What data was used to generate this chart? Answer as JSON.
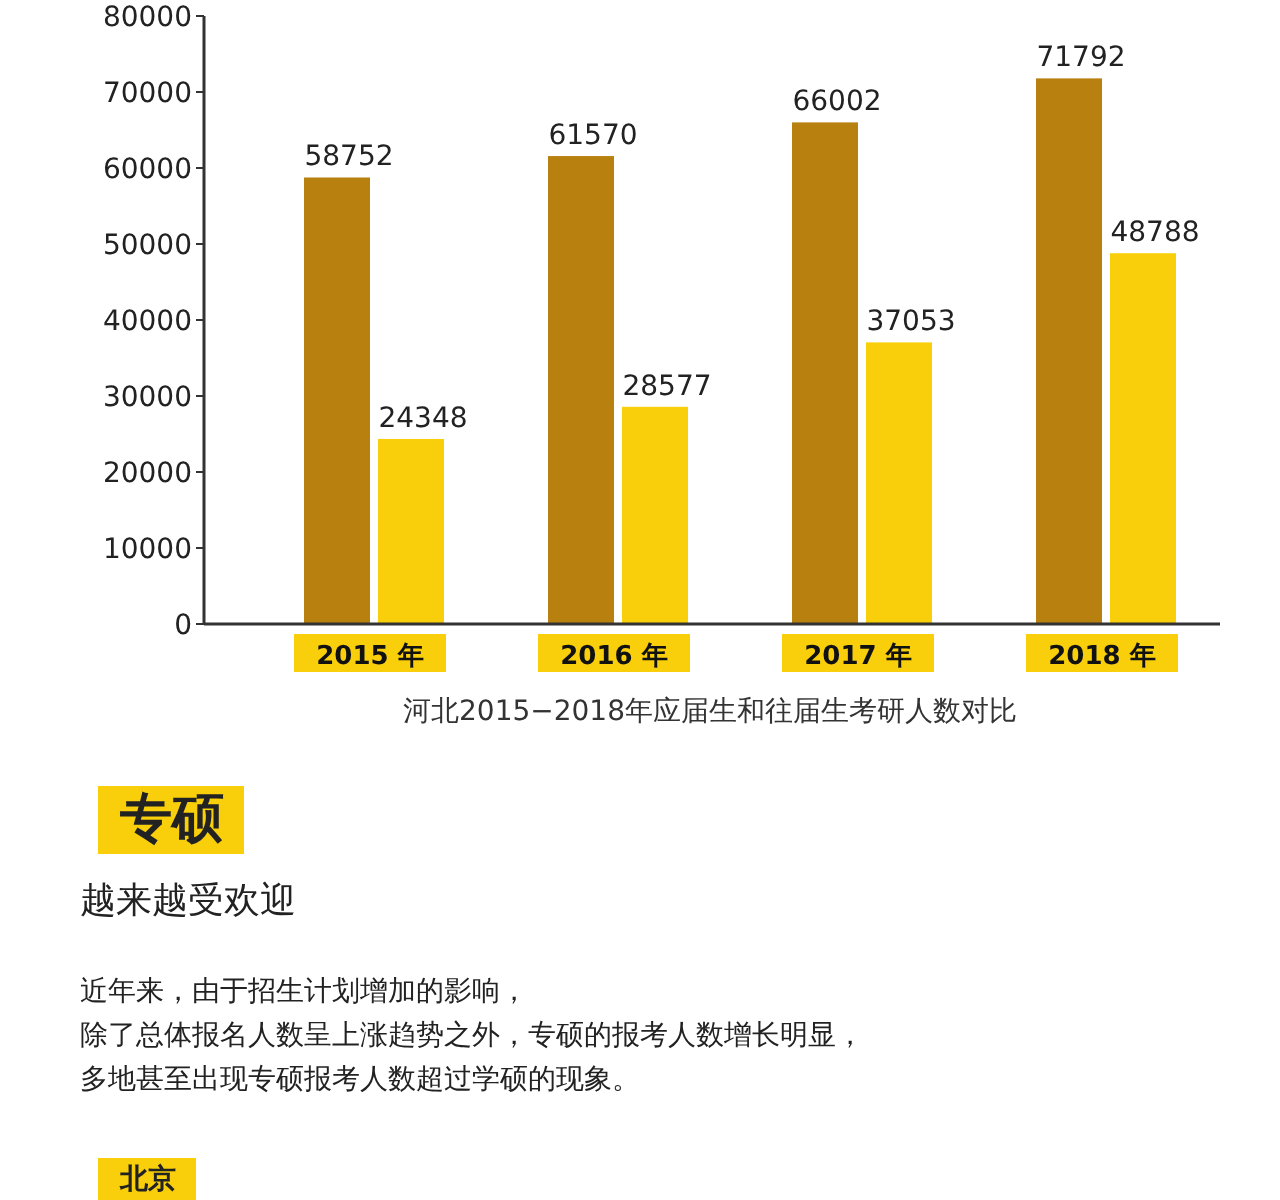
{
  "chart_data": {
    "type": "bar",
    "title": "河北2015−2018年应届生和往届生考研人数对比",
    "categories": [
      "2015 年",
      "2016 年",
      "2017 年",
      "2018 年"
    ],
    "series": [
      {
        "color": "#b8800f",
        "values": [
          58752,
          61570,
          66002,
          71792
        ]
      },
      {
        "color": "#f8cf0a",
        "values": [
          24348,
          28577,
          37053,
          48788
        ]
      }
    ],
    "ylim": [
      0,
      80000
    ],
    "yticks": [
      0,
      10000,
      20000,
      30000,
      40000,
      50000,
      60000,
      70000,
      80000
    ],
    "data_labels": true,
    "annotations": [
      "专硕",
      "越来越受欢迎",
      "近年来，由于招生计划增加的影响，",
      "除了总体报名人数呈上涨趋势之外，专硕的报考人数增长明显，",
      "多地甚至出现专硕报考人数超过学硕的现象。",
      "北京"
    ]
  }
}
